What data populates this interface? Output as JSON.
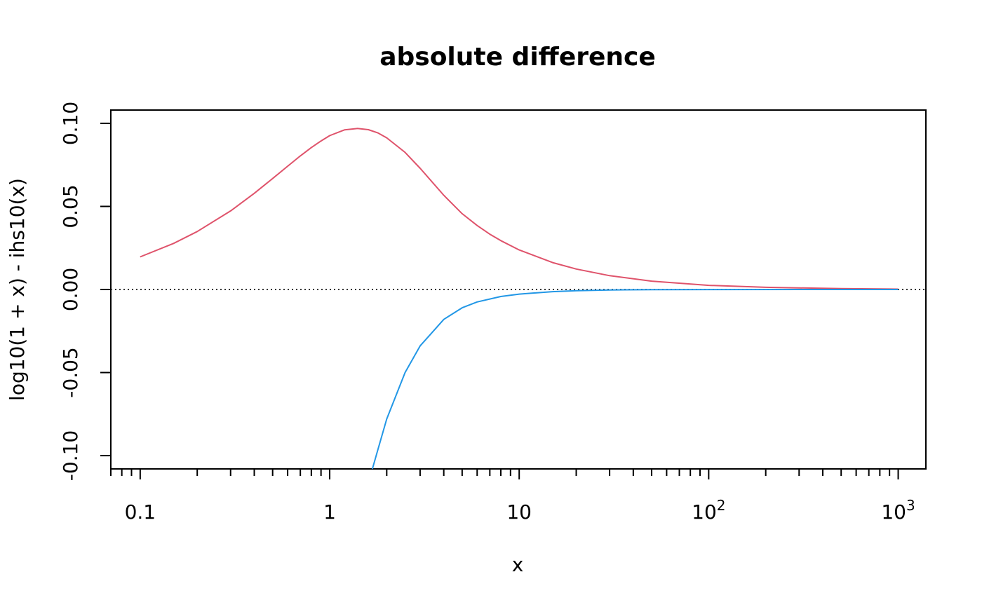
{
  "chart_data": {
    "type": "line",
    "title": "absolute difference",
    "xlabel": "x",
    "ylabel": "log10(1 + x) - ihs10(x)",
    "x_scale": "log10",
    "xlim": [
      0.07,
      1400
    ],
    "ylim": [
      -0.108,
      0.108
    ],
    "x_ticks": [
      {
        "value": 0.1,
        "label": "0.1"
      },
      {
        "value": 1,
        "label": "1"
      },
      {
        "value": 10,
        "label": "10"
      },
      {
        "value": 100,
        "base": "10",
        "exp": "2"
      },
      {
        "value": 1000,
        "base": "10",
        "exp": "3"
      }
    ],
    "y_ticks": [
      {
        "value": -0.1,
        "label": "-0.10"
      },
      {
        "value": -0.05,
        "label": "-0.05"
      },
      {
        "value": 0.0,
        "label": "0.00"
      },
      {
        "value": 0.05,
        "label": "0.05"
      },
      {
        "value": 0.1,
        "label": "0.10"
      }
    ],
    "reference_line": {
      "y": 0,
      "style": "dotted",
      "color": "#333333"
    },
    "grid": false,
    "legend": "none",
    "series": [
      {
        "color": "#DF536B",
        "points": [
          [
            0.1,
            0.0196
          ],
          [
            0.15,
            0.0277
          ],
          [
            0.2,
            0.0349
          ],
          [
            0.3,
            0.0473
          ],
          [
            0.4,
            0.0579
          ],
          [
            0.5,
            0.0668
          ],
          [
            0.6,
            0.0742
          ],
          [
            0.7,
            0.0804
          ],
          [
            0.8,
            0.0854
          ],
          [
            0.9,
            0.0894
          ],
          [
            1.0,
            0.0926
          ],
          [
            1.2,
            0.0961
          ],
          [
            1.4,
            0.0969
          ],
          [
            1.6,
            0.0962
          ],
          [
            1.8,
            0.0942
          ],
          [
            2.0,
            0.0913
          ],
          [
            2.5,
            0.0825
          ],
          [
            3.0,
            0.073
          ],
          [
            4.0,
            0.0567
          ],
          [
            5.0,
            0.0456
          ],
          [
            6.0,
            0.0385
          ],
          [
            7.0,
            0.0333
          ],
          [
            8.0,
            0.0294
          ],
          [
            10.0,
            0.0238
          ],
          [
            15.0,
            0.0162
          ],
          [
            20.0,
            0.0123
          ],
          [
            30.0,
            0.0083
          ],
          [
            50.0,
            0.005
          ],
          [
            100.0,
            0.0025
          ],
          [
            200.0,
            0.0013
          ],
          [
            500.0,
            0.0005
          ],
          [
            1000.0,
            0.0002
          ]
        ]
      },
      {
        "color": "#2297E6",
        "points": [
          [
            1.68,
            -0.108
          ],
          [
            1.8,
            -0.096
          ],
          [
            2.0,
            -0.078
          ],
          [
            2.5,
            -0.05
          ],
          [
            3.0,
            -0.034
          ],
          [
            4.0,
            -0.018
          ],
          [
            5.0,
            -0.011
          ],
          [
            6.0,
            -0.0075
          ],
          [
            8.0,
            -0.0042
          ],
          [
            10.0,
            -0.0028
          ],
          [
            15.0,
            -0.0013
          ],
          [
            20.0,
            -0.0007
          ],
          [
            30.0,
            -0.0003
          ],
          [
            50.0,
            -0.0001
          ],
          [
            100.0,
            -3e-05
          ],
          [
            1000.0,
            0.0
          ]
        ]
      }
    ]
  }
}
